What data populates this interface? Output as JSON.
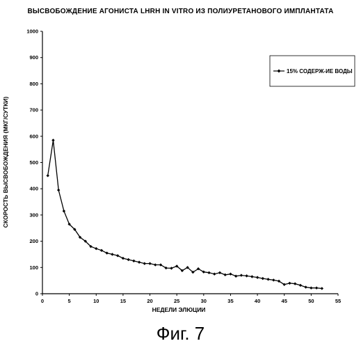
{
  "title": "ВЫСВОБОЖДЕНИЕ АГОНИСТА LHRH IN VITRO ИЗ ПОЛИУРЕТАНОВОГО ИМПЛАНТАТА",
  "caption": "Фиг. 7",
  "chart_data": {
    "type": "line",
    "title": "ВЫСВОБОЖДЕНИЕ АГОНИСТА LHRH IN VITRO ИЗ ПОЛИУРЕТАНОВОГО ИМПЛАНТАТА",
    "xlabel": "НЕДЕЛИ ЭЛЮЦИИ",
    "ylabel": "СКОРОСТЬ ВЫСВОБОЖДЕНИЯ (МКГ/СУТКИ)",
    "xlim": [
      0,
      55
    ],
    "ylim": [
      0,
      1000
    ],
    "xticks": [
      0,
      5,
      10,
      15,
      20,
      25,
      30,
      35,
      40,
      45,
      50,
      55
    ],
    "yticks": [
      0,
      100,
      200,
      300,
      400,
      500,
      600,
      700,
      800,
      900,
      1000
    ],
    "grid": false,
    "legend_position": "top-right",
    "series": [
      {
        "name": "15% СОДЕРЖ-ИЕ ВОДЫ",
        "color": "#000000",
        "marker": "diamond",
        "x": [
          1,
          2,
          3,
          4,
          5,
          6,
          7,
          8,
          9,
          10,
          11,
          12,
          13,
          14,
          15,
          16,
          17,
          18,
          19,
          20,
          21,
          22,
          23,
          24,
          25,
          26,
          27,
          28,
          29,
          30,
          31,
          32,
          33,
          34,
          35,
          36,
          37,
          38,
          39,
          40,
          41,
          42,
          43,
          44,
          45,
          46,
          47,
          48,
          49,
          50,
          51,
          52
        ],
        "y": [
          450,
          585,
          395,
          315,
          265,
          245,
          215,
          200,
          180,
          172,
          165,
          155,
          150,
          145,
          135,
          130,
          125,
          120,
          115,
          115,
          110,
          110,
          98,
          97,
          105,
          88,
          100,
          82,
          95,
          83,
          80,
          75,
          80,
          72,
          75,
          67,
          70,
          68,
          65,
          62,
          58,
          55,
          52,
          48,
          35,
          40,
          38,
          32,
          25,
          22,
          22,
          20
        ]
      }
    ]
  }
}
